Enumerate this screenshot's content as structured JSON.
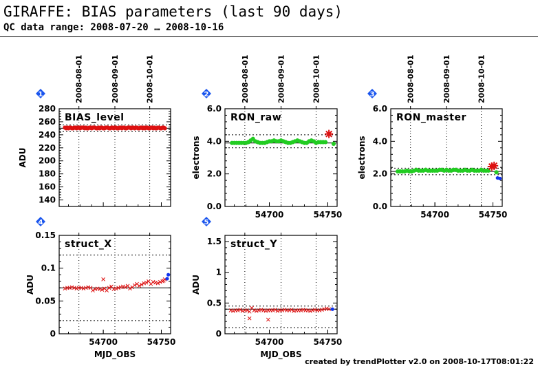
{
  "header": {
    "title": "GIRAFFE: BIAS parameters (last 90 days)",
    "subtitle": "QC data range: 2008-07-20 … 2008-10-16"
  },
  "footer": "created by trendPlotter v2.0 on 2008-10-17T08:01:22",
  "date_ticks": [
    {
      "label": "2008-08-01",
      "mjd": 54679
    },
    {
      "label": "2008-09-01",
      "mjd": 54710
    },
    {
      "label": "2008-10-01",
      "mjd": 54740
    }
  ],
  "colors": {
    "green": "#22cc22",
    "red": "#dd1111",
    "blue": "#1133ee",
    "badge": "#1a55ee"
  },
  "chart_data": [
    {
      "type": "scatter",
      "badge": "1",
      "title": "BIAS_level",
      "ylabel": "ADU",
      "xlabel": "",
      "xlim": [
        54662,
        54758
      ],
      "ylim": [
        130,
        280
      ],
      "yticks": [
        140,
        160,
        180,
        200,
        220,
        240,
        260,
        280
      ],
      "xticks": [],
      "ref_lines": [
        250
      ],
      "tol_lines": [
        245,
        255
      ],
      "series": [
        {
          "name": "bias",
          "color": "red",
          "marker": "dot",
          "x": [
            54667,
            54668,
            54669,
            54670,
            54671,
            54672,
            54673,
            54674,
            54675,
            54676,
            54677,
            54678,
            54679,
            54680,
            54681,
            54682,
            54683,
            54684,
            54685,
            54686,
            54687,
            54688,
            54689,
            54690,
            54691,
            54692,
            54693,
            54694,
            54695,
            54696,
            54697,
            54698,
            54699,
            54700,
            54701,
            54702,
            54703,
            54704,
            54705,
            54706,
            54707,
            54708,
            54709,
            54710,
            54711,
            54712,
            54713,
            54714,
            54715,
            54716,
            54717,
            54718,
            54719,
            54720,
            54721,
            54722,
            54723,
            54724,
            54725,
            54726,
            54727,
            54728,
            54729,
            54730,
            54731,
            54732,
            54733,
            54734,
            54735,
            54736,
            54737,
            54738,
            54739,
            54740,
            54741,
            54742,
            54743,
            54744,
            54745,
            54746,
            54747,
            54748,
            54749,
            54750,
            54751,
            54752,
            54753
          ],
          "y": [
            251,
            250,
            251,
            250,
            251,
            251,
            250,
            250,
            251,
            251,
            250,
            251,
            251,
            250,
            251,
            251,
            251,
            250,
            251,
            250,
            250,
            251,
            251,
            250,
            251,
            251,
            251,
            250,
            250,
            251,
            250,
            251,
            251,
            250,
            250,
            251,
            251,
            251,
            250,
            250,
            251,
            251,
            250,
            251,
            251,
            250,
            250,
            251,
            251,
            250,
            251,
            251,
            250,
            250,
            251,
            251,
            251,
            250,
            251,
            251,
            250,
            251,
            251,
            250,
            250,
            251,
            251,
            250,
            251,
            250,
            251,
            251,
            250,
            250,
            251,
            251,
            250,
            251,
            250,
            250,
            251,
            251,
            250,
            250,
            251,
            251,
            250
          ]
        }
      ]
    },
    {
      "type": "scatter",
      "badge": "2",
      "title": "RON_raw",
      "ylabel": "electrons",
      "xlabel": "",
      "xlim": [
        54662,
        54758
      ],
      "ylim": [
        0,
        6
      ],
      "yticks": [
        0,
        2,
        4,
        6
      ],
      "ytick_labels": [
        "0.0",
        "2.0",
        "4.0",
        "6.0"
      ],
      "xticks": [
        54700,
        54750
      ],
      "ref_lines": [
        3.9
      ],
      "tol_lines": [
        3.6,
        4.4
      ],
      "series": [
        {
          "name": "ron_raw",
          "color": "green",
          "marker": "dot",
          "x": [
            54668,
            54670,
            54672,
            54674,
            54676,
            54678,
            54680,
            54682,
            54684,
            54686,
            54688,
            54690,
            54692,
            54694,
            54696,
            54698,
            54700,
            54702,
            54704,
            54706,
            54708,
            54710,
            54712,
            54714,
            54716,
            54718,
            54720,
            54722,
            54724,
            54726,
            54728,
            54730,
            54732,
            54734,
            54736,
            54738,
            54740,
            54742,
            54744,
            54746,
            54748,
            54755
          ],
          "y": [
            3.9,
            3.9,
            3.9,
            3.9,
            3.9,
            3.9,
            3.9,
            3.95,
            4.05,
            4.15,
            4.0,
            3.95,
            3.9,
            3.9,
            3.9,
            3.95,
            4.0,
            4.0,
            4.05,
            4.0,
            4.0,
            4.05,
            4.0,
            3.95,
            3.9,
            3.9,
            3.95,
            4.0,
            4.05,
            4.0,
            3.95,
            3.9,
            3.9,
            4.0,
            4.05,
            4.0,
            3.9,
            3.95,
            3.95,
            3.95,
            3.95,
            3.85
          ]
        },
        {
          "name": "ron_raw_outlier",
          "color": "red",
          "marker": "star",
          "x": [
            54751
          ],
          "y": [
            4.45
          ]
        }
      ]
    },
    {
      "type": "scatter",
      "badge": "3",
      "title": "RON_master",
      "ylabel": "electrons",
      "xlabel": "",
      "xlim": [
        54662,
        54758
      ],
      "ylim": [
        0,
        6
      ],
      "yticks": [
        0,
        2,
        4,
        6
      ],
      "ytick_labels": [
        "0.0",
        "2.0",
        "4.0",
        "6.0"
      ],
      "xticks": [
        54700,
        54750
      ],
      "ref_lines": [
        2.15
      ],
      "tol_lines": [
        1.95,
        2.35
      ],
      "series": [
        {
          "name": "ron_master",
          "color": "green",
          "marker": "dot",
          "x": [
            54668,
            54670,
            54672,
            54674,
            54676,
            54678,
            54680,
            54682,
            54684,
            54686,
            54688,
            54690,
            54692,
            54694,
            54696,
            54698,
            54700,
            54702,
            54704,
            54706,
            54708,
            54710,
            54712,
            54714,
            54716,
            54718,
            54720,
            54722,
            54724,
            54726,
            54728,
            54730,
            54732,
            54734,
            54736,
            54738,
            54740,
            54742,
            54744,
            54746,
            54753
          ],
          "y": [
            2.15,
            2.15,
            2.15,
            2.15,
            2.2,
            2.15,
            2.15,
            2.2,
            2.25,
            2.2,
            2.2,
            2.2,
            2.25,
            2.2,
            2.2,
            2.2,
            2.2,
            2.2,
            2.25,
            2.25,
            2.2,
            2.25,
            2.2,
            2.2,
            2.25,
            2.25,
            2.2,
            2.2,
            2.2,
            2.25,
            2.2,
            2.2,
            2.25,
            2.2,
            2.2,
            2.2,
            2.25,
            2.2,
            2.2,
            2.2,
            2.1
          ]
        },
        {
          "name": "ron_master_outlier",
          "color": "red",
          "marker": "star",
          "x": [
            54749,
            54751
          ],
          "y": [
            2.45,
            2.5
          ]
        },
        {
          "name": "ron_master_latest",
          "color": "blue",
          "marker": "dot",
          "x": [
            54754,
            54756
          ],
          "y": [
            1.75,
            1.72
          ]
        }
      ]
    },
    {
      "type": "scatter",
      "badge": "4",
      "title": "struct_X",
      "ylabel": "ADU",
      "xlabel": "MJD_OBS",
      "xlim": [
        54662,
        54758
      ],
      "ylim": [
        0,
        0.15
      ],
      "yticks": [
        0,
        0.05,
        0.1,
        0.15
      ],
      "ytick_labels": [
        "0",
        "0.05",
        "0.1",
        "0.15"
      ],
      "xticks": [
        54700,
        54750
      ],
      "ref_lines": [
        0.07
      ],
      "tol_lines": [
        0.02,
        0.12
      ],
      "series": [
        {
          "name": "struct_x",
          "color": "red",
          "marker": "cross",
          "x": [
            54667,
            54669,
            54671,
            54673,
            54675,
            54677,
            54679,
            54681,
            54683,
            54685,
            54687,
            54689,
            54691,
            54693,
            54695,
            54697,
            54699,
            54700,
            54701,
            54703,
            54705,
            54707,
            54709,
            54711,
            54713,
            54715,
            54717,
            54719,
            54721,
            54723,
            54725,
            54727,
            54729,
            54731,
            54733,
            54735,
            54737,
            54739,
            54741,
            54743,
            54745,
            54747,
            54749,
            54751,
            54752,
            54753
          ],
          "y": [
            0.069,
            0.07,
            0.07,
            0.071,
            0.07,
            0.069,
            0.07,
            0.07,
            0.069,
            0.07,
            0.071,
            0.07,
            0.066,
            0.068,
            0.069,
            0.068,
            0.067,
            0.083,
            0.069,
            0.066,
            0.07,
            0.072,
            0.068,
            0.069,
            0.07,
            0.071,
            0.072,
            0.071,
            0.073,
            0.069,
            0.071,
            0.074,
            0.076,
            0.073,
            0.075,
            0.077,
            0.078,
            0.08,
            0.076,
            0.079,
            0.078,
            0.077,
            0.079,
            0.08,
            0.081,
            0.083
          ]
        },
        {
          "name": "struct_x_latest",
          "color": "blue",
          "marker": "dot",
          "x": [
            54755,
            54756
          ],
          "y": [
            0.084,
            0.09
          ]
        }
      ]
    },
    {
      "type": "scatter",
      "badge": "5",
      "title": "struct_Y",
      "ylabel": "ADU",
      "xlabel": "MJD_OBS",
      "xlim": [
        54662,
        54758
      ],
      "ylim": [
        0,
        1.6
      ],
      "yticks": [
        0,
        0.5,
        1,
        1.5
      ],
      "ytick_labels": [
        "0",
        "0.5",
        "1",
        "1.5"
      ],
      "xticks": [
        54700,
        54750
      ],
      "ref_lines": [
        0.4
      ],
      "tol_lines": [
        0.1,
        0.45
      ],
      "series": [
        {
          "name": "struct_y",
          "color": "red",
          "marker": "cross",
          "x": [
            54667,
            54669,
            54671,
            54673,
            54675,
            54677,
            54679,
            54681,
            54683,
            54685,
            54687,
            54689,
            54691,
            54693,
            54695,
            54697,
            54699,
            54701,
            54703,
            54705,
            54707,
            54709,
            54711,
            54713,
            54715,
            54717,
            54719,
            54721,
            54723,
            54725,
            54727,
            54729,
            54731,
            54733,
            54735,
            54737,
            54739,
            54741,
            54743,
            54745,
            54747,
            54749,
            54751,
            54683,
            54699
          ],
          "y": [
            0.38,
            0.37,
            0.38,
            0.38,
            0.39,
            0.37,
            0.38,
            0.38,
            0.36,
            0.42,
            0.38,
            0.37,
            0.38,
            0.39,
            0.38,
            0.37,
            0.38,
            0.38,
            0.38,
            0.39,
            0.37,
            0.38,
            0.38,
            0.39,
            0.38,
            0.38,
            0.39,
            0.37,
            0.38,
            0.38,
            0.38,
            0.39,
            0.38,
            0.38,
            0.37,
            0.38,
            0.39,
            0.38,
            0.38,
            0.39,
            0.4,
            0.41,
            0.4,
            0.25,
            0.23
          ]
        },
        {
          "name": "struct_y_latest",
          "color": "blue",
          "marker": "dot",
          "x": [
            54754
          ],
          "y": [
            0.4
          ]
        }
      ]
    }
  ]
}
